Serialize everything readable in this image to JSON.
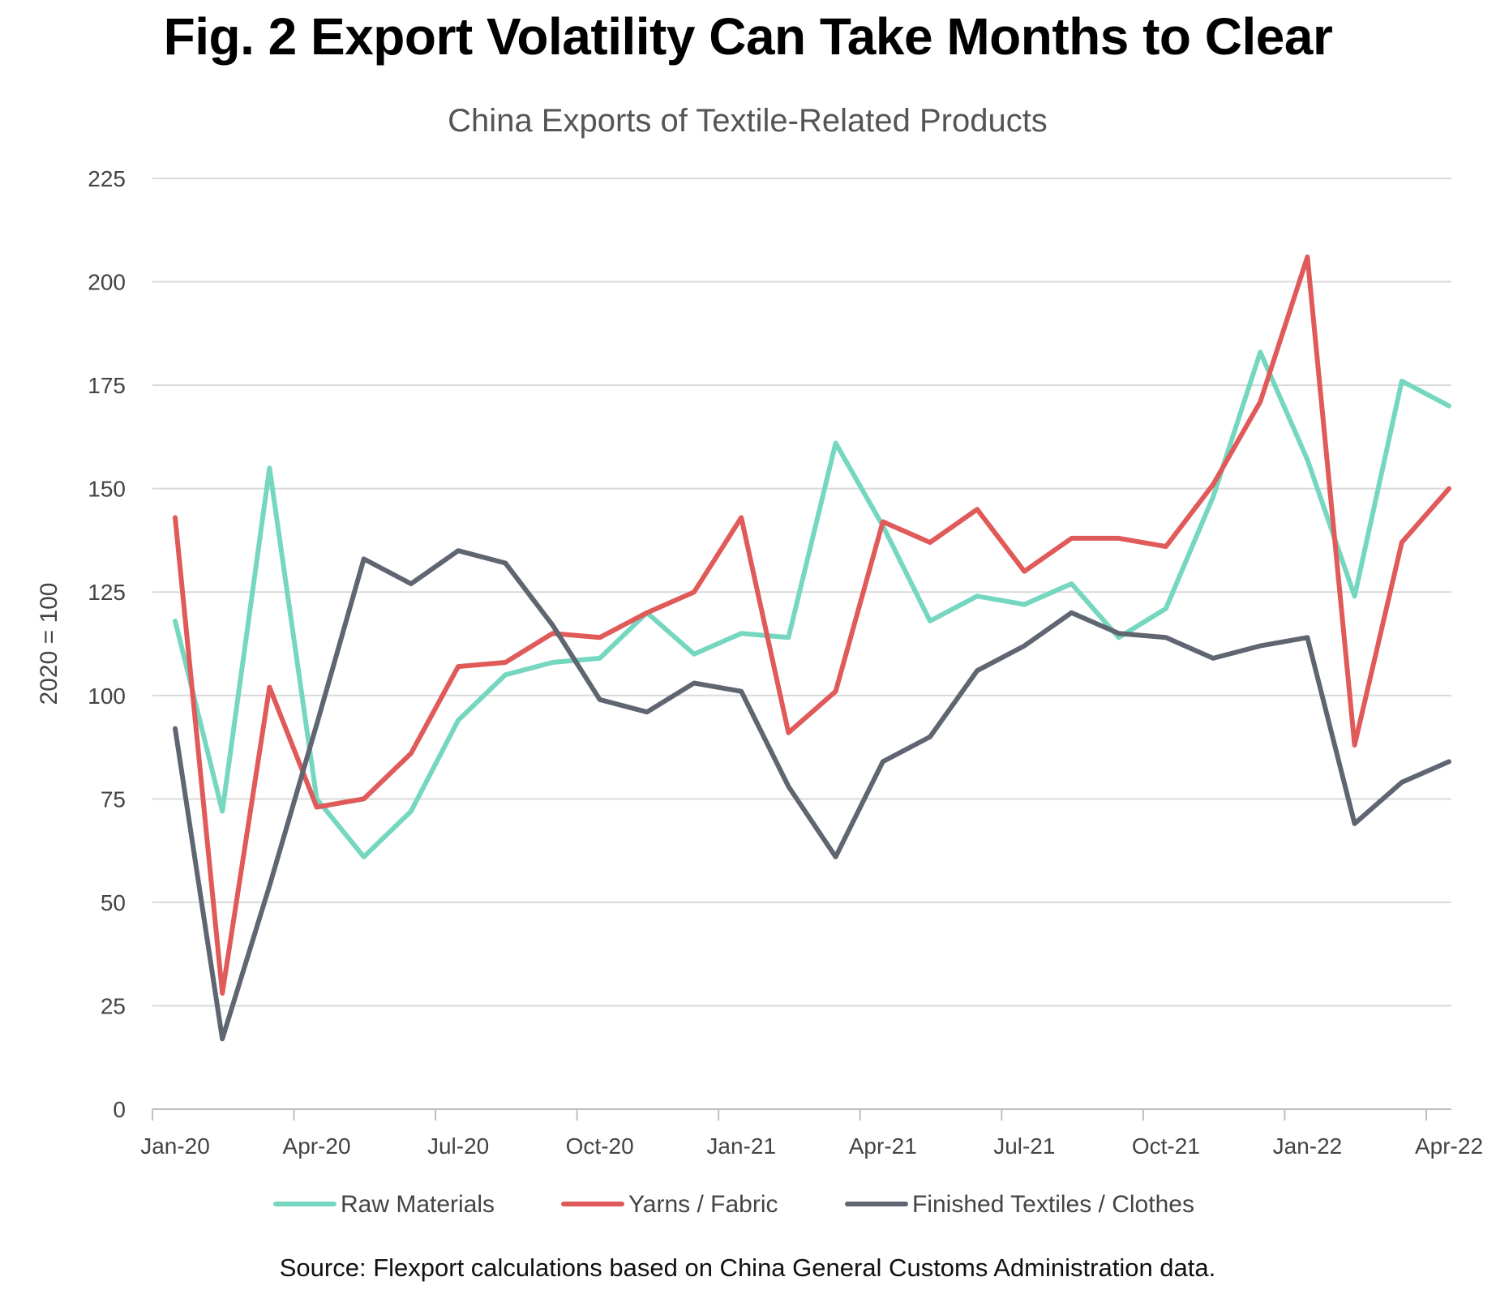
{
  "figure_title": "Fig. 2 Export Volatility Can Take Months to Clear",
  "source": "Source: Flexport calculations based on China General Customs Administration data.",
  "colors": {
    "raw_materials": "#76d7c0",
    "yarns_fabric": "#e05a5a",
    "finished": "#5f6672",
    "grid": "#d9d9d9",
    "axis": "#bfbfbf"
  },
  "chart_data": {
    "type": "line",
    "title": "China Exports of Textile-Related Products",
    "xlabel": "",
    "ylabel": "2020 = 100",
    "ylim": [
      0,
      225
    ],
    "yticks": [
      0,
      25,
      50,
      75,
      100,
      125,
      150,
      175,
      200,
      225
    ],
    "grid": true,
    "legend_position": "bottom",
    "x": [
      "Jan-20",
      "Feb-20",
      "Mar-20",
      "Apr-20",
      "May-20",
      "Jun-20",
      "Jul-20",
      "Aug-20",
      "Sep-20",
      "Oct-20",
      "Nov-20",
      "Dec-20",
      "Jan-21",
      "Feb-21",
      "Mar-21",
      "Apr-21",
      "May-21",
      "Jun-21",
      "Jul-21",
      "Aug-21",
      "Sep-21",
      "Oct-21",
      "Nov-21",
      "Dec-21",
      "Jan-22",
      "Feb-22",
      "Mar-22",
      "Apr-22"
    ],
    "xtick_labels": [
      "Jan-20",
      "Apr-20",
      "Jul-20",
      "Oct-20",
      "Jan-21",
      "Apr-21",
      "Jul-21",
      "Oct-21",
      "Jan-22",
      "Apr-22"
    ],
    "series": [
      {
        "name": "Raw Materials",
        "color_key": "raw_materials",
        "values": [
          118,
          72,
          155,
          75,
          61,
          72,
          94,
          105,
          108,
          109,
          120,
          110,
          115,
          114,
          161,
          141,
          118,
          124,
          122,
          127,
          114,
          121,
          148,
          183,
          157,
          124,
          176,
          170
        ]
      },
      {
        "name": "Yarns / Fabric",
        "color_key": "yarns_fabric",
        "values": [
          143,
          28,
          102,
          73,
          75,
          86,
          107,
          108,
          115,
          114,
          120,
          125,
          143,
          91,
          101,
          142,
          137,
          145,
          130,
          138,
          138,
          136,
          151,
          171,
          206,
          88,
          137,
          150
        ]
      },
      {
        "name": "Finished Textiles / Clothes",
        "color_key": "finished",
        "values": [
          92,
          17,
          54,
          93,
          133,
          127,
          135,
          132,
          117,
          99,
          96,
          103,
          101,
          78,
          61,
          84,
          90,
          106,
          112,
          120,
          115,
          114,
          109,
          112,
          114,
          69,
          79,
          84
        ]
      }
    ]
  }
}
